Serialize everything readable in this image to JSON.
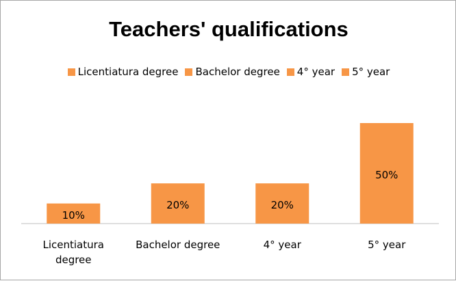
{
  "chart_data": {
    "type": "bar",
    "title": "Teachers' qualifications",
    "categories": [
      "Licentiatura degree",
      "Bachelor degree",
      "4° year",
      "5° year"
    ],
    "values": [
      10,
      20,
      20,
      50
    ],
    "value_labels": [
      "10%",
      "20%",
      "20%",
      "50%"
    ],
    "color": "#f79646",
    "legend": true
  }
}
